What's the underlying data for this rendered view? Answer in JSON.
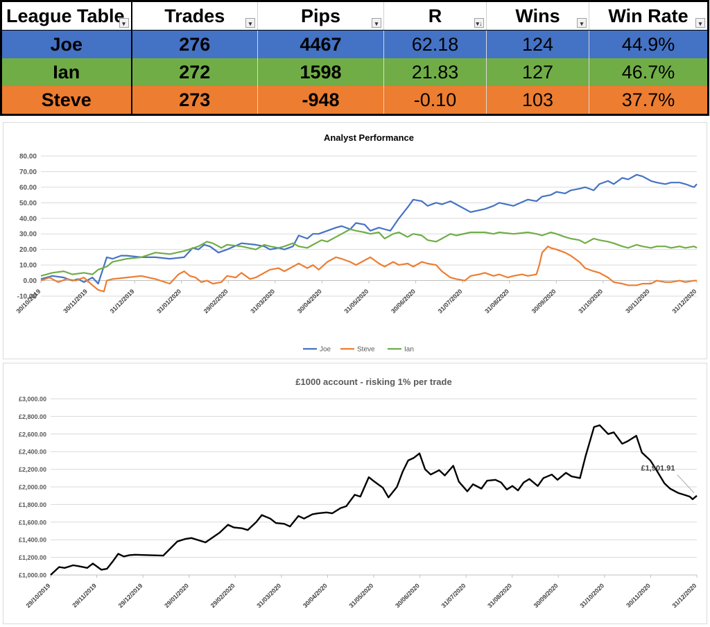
{
  "league_table": {
    "headers": [
      "League Table",
      "Trades",
      "Pips",
      "R",
      "Wins",
      "Win Rate"
    ],
    "rows": [
      {
        "name": "Joe",
        "trades": "276",
        "pips": "4467",
        "r": "62.18",
        "wins": "124",
        "win_rate": "44.9%",
        "color": "#4472c4"
      },
      {
        "name": "Ian",
        "trades": "272",
        "pips": "1598",
        "r": "21.83",
        "wins": "127",
        "win_rate": "46.7%",
        "color": "#70ad47"
      },
      {
        "name": "Steve",
        "trades": "273",
        "pips": "-948",
        "r": "-0.10",
        "wins": "103",
        "win_rate": "37.7%",
        "color": "#ed7d31"
      }
    ]
  },
  "chart_data": [
    {
      "type": "line",
      "title": "Analyst Performance",
      "xlabel": "",
      "ylabel": "",
      "ylim": [
        -10,
        80
      ],
      "yticks": [
        "-10.00",
        "0.00",
        "10.00",
        "20.00",
        "30.00",
        "40.00",
        "50.00",
        "60.00",
        "70.00",
        "80.00"
      ],
      "x_tick_labels": [
        "30/10/2019",
        "30/11/2019",
        "31/12/2019",
        "31/01/2020",
        "29/02/2020",
        "31/03/2020",
        "30/04/2020",
        "31/05/2020",
        "30/06/2020",
        "31/07/2020",
        "31/08/2020",
        "30/09/2020",
        "31/10/2020",
        "30/11/2020",
        "31/12/2020"
      ],
      "x_range_days": [
        0,
        458
      ],
      "legend": "bottom",
      "grid": true,
      "series": [
        {
          "name": "Joe",
          "color": "#4472c4",
          "x": [
            0,
            8,
            16,
            22,
            26,
            30,
            36,
            40,
            46,
            50,
            56,
            60,
            70,
            80,
            90,
            100,
            106,
            110,
            114,
            118,
            124,
            130,
            140,
            150,
            156,
            160,
            166,
            170,
            176,
            180,
            186,
            190,
            194,
            200,
            206,
            210,
            216,
            220,
            226,
            230,
            236,
            240,
            244,
            250,
            256,
            260,
            266,
            270,
            276,
            280,
            286,
            290,
            300,
            310,
            316,
            320,
            330,
            340,
            346,
            350,
            356,
            360,
            366,
            370,
            376,
            380,
            386,
            390,
            396,
            400,
            406,
            410,
            416,
            420,
            426,
            430,
            436,
            440,
            446,
            450,
            456,
            458
          ],
          "y": [
            1,
            3,
            2,
            0,
            1,
            -1,
            2,
            -2,
            15,
            14,
            16,
            16,
            15,
            15,
            14,
            15,
            21,
            20,
            23,
            22,
            18,
            20,
            24,
            23,
            22,
            20,
            21,
            20,
            22,
            29,
            27,
            30,
            30,
            32,
            34,
            35,
            33,
            37,
            36,
            32,
            34,
            33,
            32,
            40,
            47,
            52,
            51,
            48,
            50,
            49,
            51,
            49,
            44,
            46,
            48,
            50,
            48,
            52,
            51,
            54,
            55,
            57,
            56,
            58,
            59,
            60,
            58,
            62,
            64,
            62,
            66,
            65,
            68,
            67,
            64,
            63,
            62,
            63,
            63,
            62,
            60,
            62
          ]
        },
        {
          "name": "Steve",
          "color": "#ed7d31",
          "x": [
            0,
            6,
            12,
            18,
            24,
            30,
            36,
            40,
            44,
            46,
            50,
            60,
            70,
            80,
            90,
            96,
            100,
            104,
            108,
            112,
            116,
            120,
            126,
            130,
            136,
            140,
            146,
            150,
            156,
            160,
            166,
            170,
            176,
            180,
            186,
            190,
            194,
            200,
            206,
            210,
            216,
            220,
            226,
            230,
            236,
            240,
            246,
            250,
            256,
            260,
            266,
            270,
            276,
            280,
            286,
            290,
            296,
            300,
            306,
            310,
            316,
            320,
            326,
            330,
            336,
            340,
            346,
            348,
            350,
            354,
            356,
            360,
            366,
            370,
            376,
            380,
            386,
            390,
            396,
            400,
            406,
            410,
            416,
            420,
            426,
            430,
            436,
            440,
            446,
            450,
            456,
            458
          ],
          "y": [
            0,
            2,
            -1,
            1,
            0,
            2,
            -3,
            -6,
            -7,
            0,
            1,
            2,
            3,
            1,
            -2,
            4,
            6,
            3,
            2,
            -1,
            0,
            -2,
            -1,
            3,
            2,
            5,
            1,
            2,
            5,
            7,
            8,
            6,
            9,
            11,
            8,
            10,
            7,
            12,
            15,
            14,
            12,
            10,
            13,
            15,
            11,
            9,
            12,
            10,
            11,
            9,
            12,
            11,
            10,
            6,
            2,
            1,
            0,
            3,
            4,
            5,
            3,
            4,
            2,
            3,
            4,
            3,
            4,
            10,
            18,
            22,
            21,
            20,
            18,
            16,
            12,
            8,
            6,
            5,
            2,
            -1,
            -2,
            -3,
            -3,
            -2,
            -2,
            0,
            -1,
            -1,
            0,
            -1,
            0,
            0
          ]
        },
        {
          "name": "Ian",
          "color": "#70ad47",
          "x": [
            0,
            8,
            16,
            22,
            30,
            36,
            40,
            46,
            50,
            60,
            70,
            80,
            90,
            100,
            110,
            116,
            120,
            126,
            130,
            140,
            150,
            156,
            160,
            166,
            170,
            176,
            180,
            186,
            190,
            196,
            200,
            206,
            210,
            216,
            220,
            226,
            230,
            236,
            240,
            246,
            250,
            256,
            260,
            266,
            270,
            276,
            280,
            286,
            290,
            300,
            310,
            316,
            320,
            330,
            340,
            346,
            350,
            356,
            360,
            366,
            370,
            376,
            380,
            386,
            390,
            396,
            400,
            406,
            410,
            416,
            420,
            426,
            430,
            436,
            440,
            446,
            450,
            456,
            458
          ],
          "y": [
            3,
            5,
            6,
            4,
            5,
            4,
            7,
            9,
            12,
            14,
            15,
            18,
            17,
            19,
            22,
            25,
            24,
            21,
            23,
            22,
            20,
            23,
            22,
            21,
            22,
            24,
            22,
            21,
            23,
            26,
            25,
            28,
            30,
            33,
            32,
            31,
            30,
            31,
            27,
            30,
            31,
            28,
            30,
            29,
            26,
            25,
            27,
            30,
            29,
            31,
            31,
            30,
            31,
            30,
            31,
            30,
            29,
            31,
            30,
            28,
            27,
            26,
            24,
            27,
            26,
            25,
            24,
            22,
            21,
            23,
            22,
            21,
            22,
            22,
            21,
            22,
            21,
            22,
            21
          ]
        }
      ]
    },
    {
      "type": "line",
      "title": "£1000 account - risking 1% per trade",
      "xlabel": "",
      "ylabel": "",
      "ylim": [
        1000,
        3000
      ],
      "yticks": [
        "£1,000.00",
        "£1,200.00",
        "£1,400.00",
        "£1,600.00",
        "£1,800.00",
        "£2,000.00",
        "£2,200.00",
        "£2,400.00",
        "£2,600.00",
        "£2,800.00",
        "£3,000.00"
      ],
      "x_tick_labels": [
        "29/10/2019",
        "29/11/2019",
        "29/12/2019",
        "29/01/2020",
        "29/02/2020",
        "31/03/2020",
        "30/04/2020",
        "31/05/2020",
        "30/06/2020",
        "31/07/2020",
        "31/08/2020",
        "30/09/2020",
        "31/10/2020",
        "30/11/2020",
        "31/12/2020"
      ],
      "x_range_days": [
        0,
        459
      ],
      "grid": true,
      "annotation": "£1,901.91",
      "series": [
        {
          "name": "",
          "color": "#000000",
          "x": [
            0,
            6,
            10,
            16,
            20,
            26,
            30,
            36,
            40,
            44,
            48,
            52,
            56,
            60,
            70,
            80,
            90,
            96,
            100,
            110,
            120,
            126,
            130,
            136,
            140,
            146,
            150,
            156,
            160,
            166,
            170,
            176,
            180,
            186,
            190,
            196,
            200,
            206,
            210,
            216,
            220,
            226,
            230,
            236,
            240,
            246,
            250,
            254,
            258,
            262,
            266,
            270,
            276,
            280,
            286,
            290,
            296,
            300,
            306,
            310,
            316,
            320,
            324,
            328,
            332,
            336,
            340,
            346,
            350,
            356,
            360,
            366,
            370,
            376,
            380,
            386,
            390,
            396,
            400,
            406,
            410,
            416,
            420,
            426,
            430,
            436,
            440,
            446,
            450,
            454,
            456,
            459
          ],
          "y": [
            1000,
            1090,
            1080,
            1110,
            1100,
            1080,
            1130,
            1060,
            1070,
            1150,
            1240,
            1210,
            1225,
            1230,
            1225,
            1220,
            1380,
            1410,
            1420,
            1370,
            1480,
            1570,
            1540,
            1530,
            1510,
            1600,
            1680,
            1640,
            1590,
            1580,
            1550,
            1670,
            1640,
            1690,
            1700,
            1710,
            1700,
            1760,
            1780,
            1910,
            1890,
            2110,
            2060,
            1990,
            1880,
            2000,
            2170,
            2300,
            2330,
            2380,
            2200,
            2140,
            2190,
            2130,
            2240,
            2060,
            1950,
            2030,
            1980,
            2070,
            2080,
            2050,
            1970,
            2010,
            1960,
            2050,
            2090,
            2010,
            2100,
            2140,
            2080,
            2160,
            2120,
            2100,
            2350,
            2680,
            2700,
            2600,
            2620,
            2490,
            2520,
            2580,
            2390,
            2300,
            2200,
            2040,
            1980,
            1930,
            1910,
            1890,
            1860,
            1900
          ]
        }
      ]
    }
  ]
}
